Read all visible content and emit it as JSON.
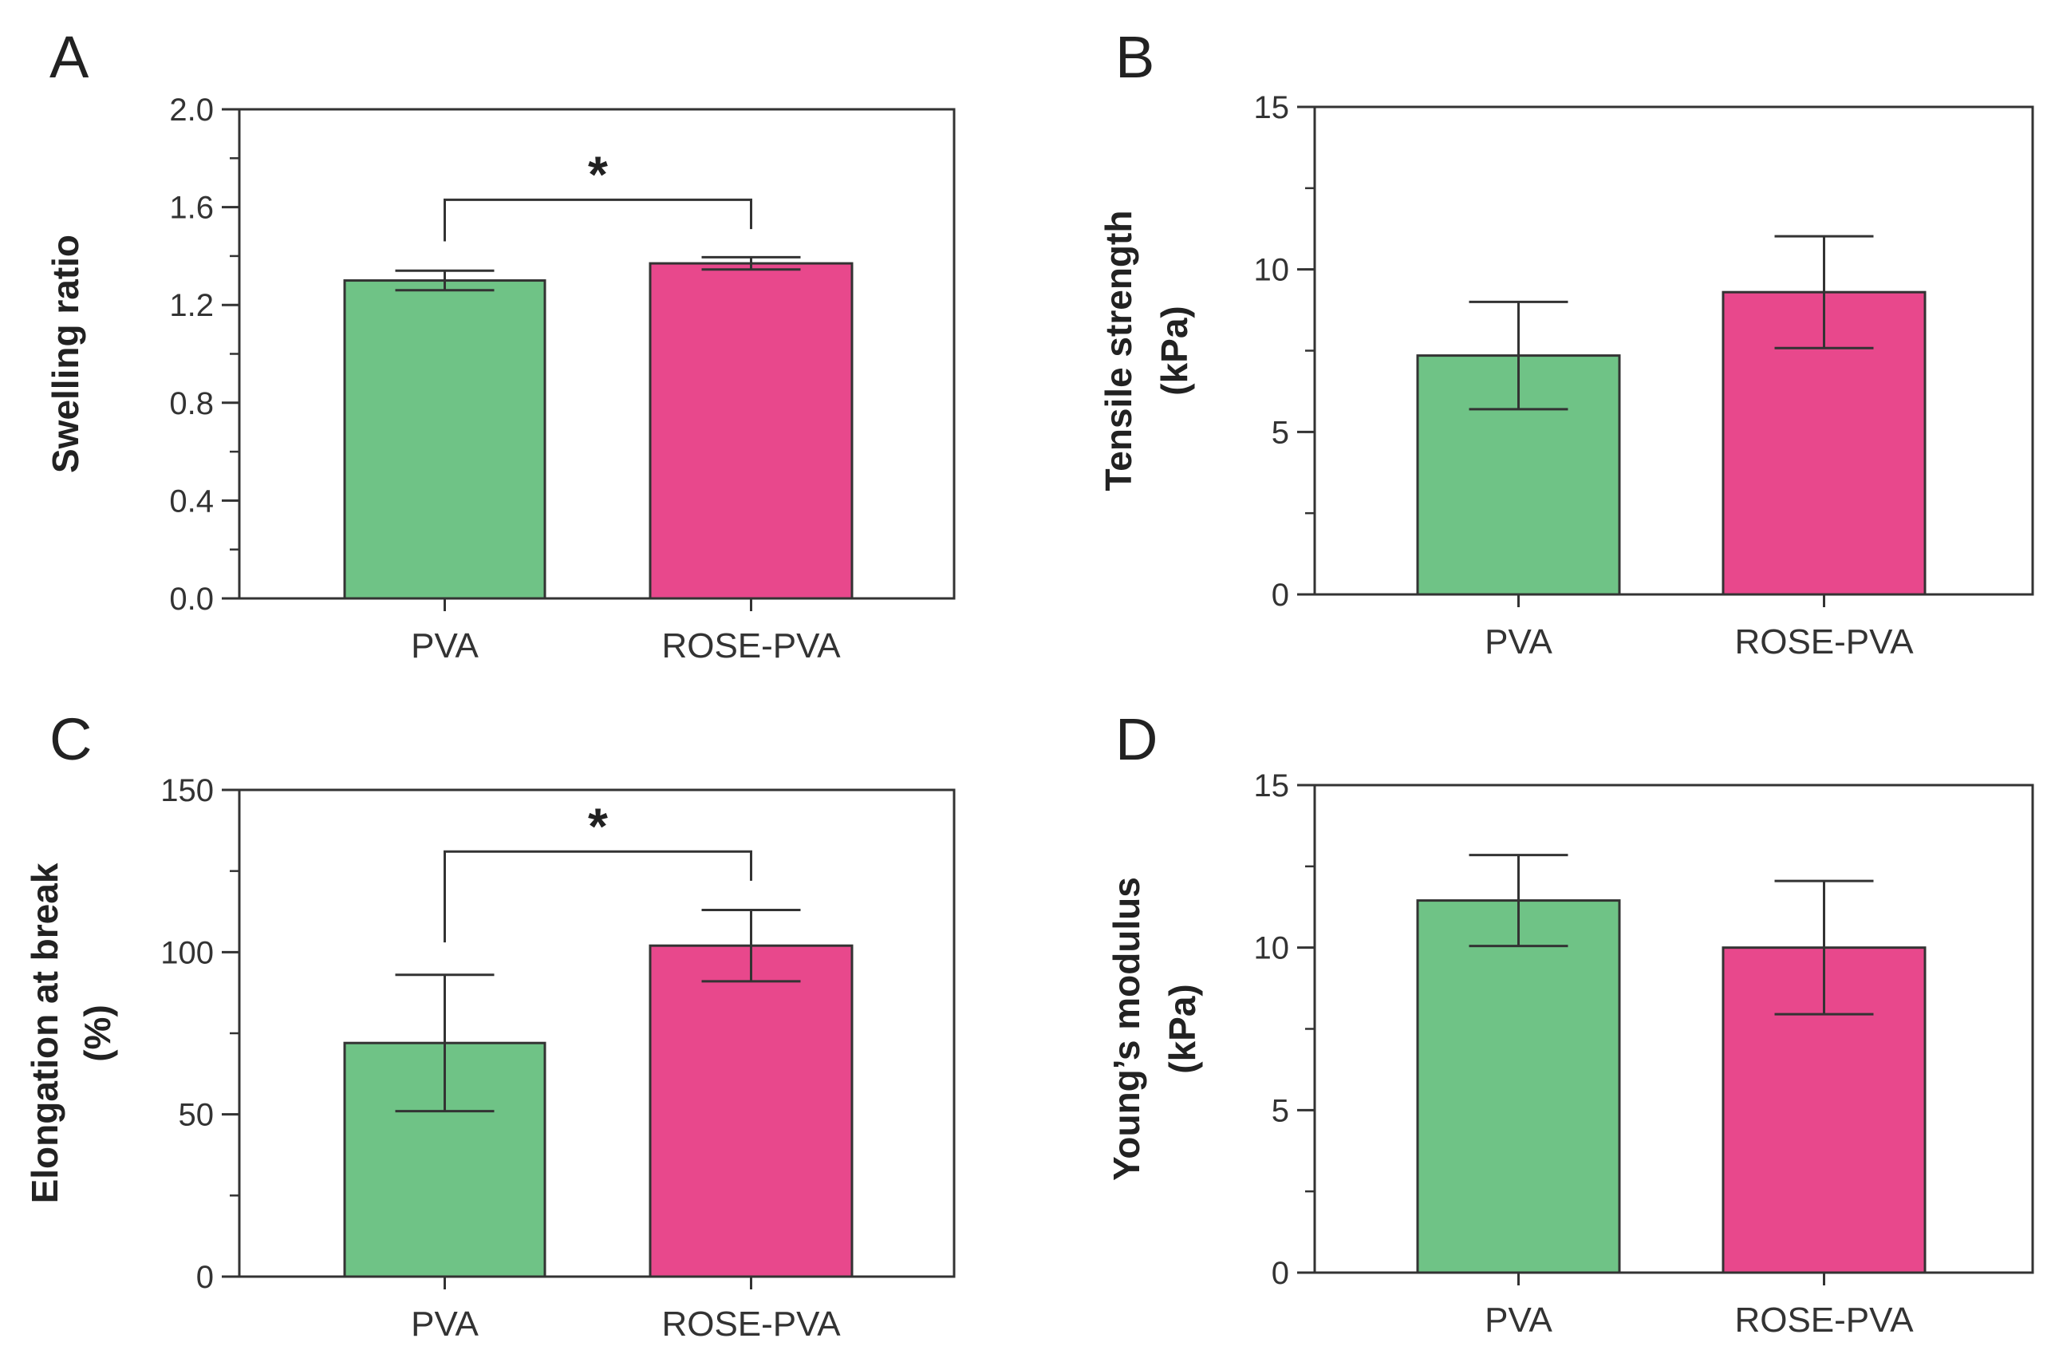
{
  "colors": {
    "pva": "#6fc386",
    "rose_pva": "#e8488c",
    "stroke": "#333333"
  },
  "chart_data": [
    {
      "type": "bar",
      "panel_label": "A",
      "categories": [
        "PVA",
        "ROSE-PVA"
      ],
      "values": [
        1.3,
        1.37
      ],
      "errors": [
        0.04,
        0.025
      ],
      "ylabel_lines": [
        "Swelling ratio"
      ],
      "ylim": [
        0,
        2.0
      ],
      "yticks": [
        0.0,
        0.4,
        0.8,
        1.2,
        1.6,
        2.0
      ],
      "ytick_labels": [
        "0.0",
        "0.4",
        "0.8",
        "1.2",
        "1.6",
        "2.0"
      ],
      "minor_step": 0.2,
      "significance": {
        "pair": [
          0,
          1
        ],
        "label": "*",
        "bracket_y": 1.63,
        "drop_to": [
          1.46,
          1.51
        ]
      }
    },
    {
      "type": "bar",
      "panel_label": "B",
      "categories": [
        "PVA",
        "ROSE-PVA"
      ],
      "values": [
        7.35,
        9.3
      ],
      "errors": [
        1.65,
        1.72
      ],
      "ylabel_lines": [
        "Tensile strength",
        "(kPa)"
      ],
      "ylim": [
        0,
        15
      ],
      "yticks": [
        0,
        5,
        10,
        15
      ],
      "ytick_labels": [
        "0",
        "5",
        "10",
        "15"
      ],
      "minor_step": 2.5
    },
    {
      "type": "bar",
      "panel_label": "C",
      "categories": [
        "PVA",
        "ROSE-PVA"
      ],
      "values": [
        72,
        102
      ],
      "errors": [
        21,
        11
      ],
      "ylabel_lines": [
        "Elongation at break",
        "(%)"
      ],
      "ylim": [
        0,
        150
      ],
      "yticks": [
        0,
        50,
        100,
        150
      ],
      "ytick_labels": [
        "0",
        "50",
        "100",
        "150"
      ],
      "minor_step": 25,
      "significance": {
        "pair": [
          0,
          1
        ],
        "label": "*",
        "bracket_y": 131,
        "drop_to": [
          103,
          122
        ]
      }
    },
    {
      "type": "bar",
      "panel_label": "D",
      "categories": [
        "PVA",
        "ROSE-PVA"
      ],
      "values": [
        11.45,
        10.0
      ],
      "errors": [
        1.4,
        2.05
      ],
      "ylabel_lines": [
        "Young’s modulus",
        "(kPa)"
      ],
      "ylim": [
        0,
        15
      ],
      "yticks": [
        0,
        5,
        10,
        15
      ],
      "ytick_labels": [
        "0",
        "5",
        "10",
        "15"
      ],
      "minor_step": 2.5
    }
  ]
}
